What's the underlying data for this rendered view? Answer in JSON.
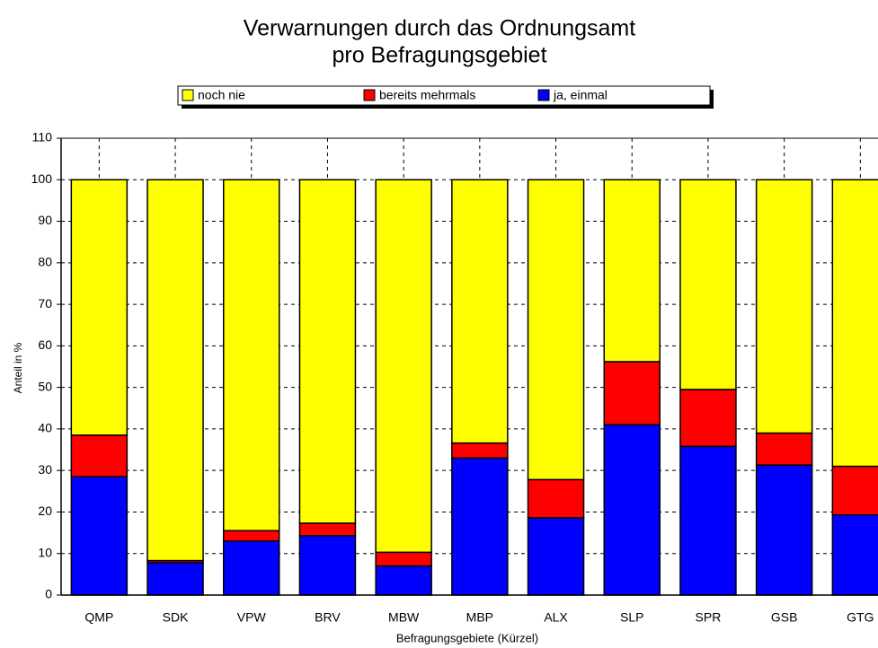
{
  "chart_data": {
    "type": "stacked_bar",
    "title_lines": [
      "Verwarnungen durch das Ordnungsamt",
      "pro Befragungsgebiet"
    ],
    "y_label": "Anteil in %",
    "x_label": "Befragungsgebiete (Kürzel)",
    "categories": [
      "QMP",
      "SDK",
      "VPW",
      "BRV",
      "MBW",
      "MBP",
      "ALX",
      "SLP",
      "SPR",
      "GSB",
      "GTG"
    ],
    "series": [
      {
        "name": "ja, einmal",
        "color": "#0000ff",
        "values": [
          28.5,
          7.8,
          13,
          14.3,
          7,
          33,
          18.6,
          41,
          35.8,
          31.3,
          19.3
        ]
      },
      {
        "name": "bereits mehrmals",
        "color": "#ff0000",
        "values": [
          10,
          0.5,
          2.5,
          3,
          3.3,
          3.6,
          9.2,
          15.2,
          13.7,
          7.7,
          11.7
        ]
      },
      {
        "name": "noch nie",
        "color": "#ffff00",
        "values": [
          61.5,
          91.7,
          84.5,
          82.7,
          89.7,
          63.4,
          72.2,
          43.8,
          50.5,
          61,
          69
        ]
      }
    ],
    "ylim": [
      0,
      110
    ],
    "yticks": [
      0,
      10,
      20,
      30,
      40,
      50,
      60,
      70,
      80,
      90,
      100,
      110
    ],
    "grid": true,
    "legend": "top"
  }
}
